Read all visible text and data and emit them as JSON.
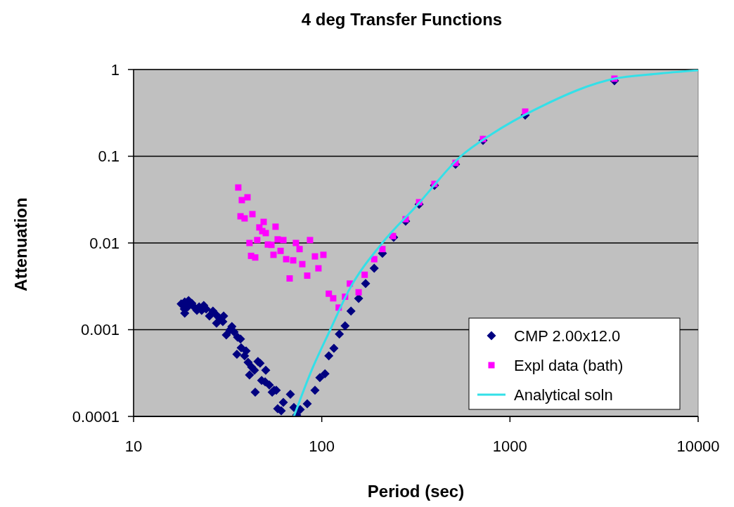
{
  "chart_data": {
    "type": "scatter",
    "title": "4 deg Transfer Functions",
    "xlabel": "Period (sec)",
    "ylabel": "Attenuation",
    "log": "xy",
    "xlim": [
      10,
      10000
    ],
    "ylim": [
      0.0001,
      1
    ],
    "xticks": [
      10,
      100,
      1000,
      10000
    ],
    "yticks": [
      0.0001,
      0.001,
      0.01,
      0.1,
      1
    ],
    "grid": "y",
    "legend": "bottom right",
    "series": [
      {
        "name": "CMP 2.00x12.0",
        "marker": "diamond",
        "color": "#000080",
        "x": [
          17.9,
          18.7,
          19.6,
          20.4,
          18.6,
          19.4,
          21.1,
          22.3,
          23.6,
          21.7,
          18.7,
          23.0,
          24.3,
          25.3,
          26.4,
          27.4,
          27.6,
          28.6,
          30.1,
          29.8,
          31.1,
          32.5,
          33.3,
          34.2,
          35.7,
          37.0,
          37.3,
          35.4,
          38.9,
          39.6,
          40.6,
          45.8,
          47.0,
          42.4,
          43.9,
          41.3,
          50.4,
          47.9,
          50.0,
          52.6,
          55.8,
          54.5,
          57.3,
          44.3,
          68.1,
          62.5,
          58.3,
          60.9,
          71.1,
          76.8,
          83.7,
          73.6,
          92.0,
          97.7,
          104,
          109,
          116,
          124,
          133,
          143,
          157,
          171,
          190,
          210,
          241,
          279,
          329,
          397,
          514,
          719,
          1205,
          3590
        ],
        "values": [
          0.00198,
          0.00209,
          0.00217,
          0.00201,
          0.00173,
          0.00183,
          0.0018,
          0.00183,
          0.0019,
          0.00167,
          0.00155,
          0.00167,
          0.00173,
          0.00144,
          0.00164,
          0.00149,
          0.00119,
          0.00136,
          0.00144,
          0.00124,
          0.00087,
          0.00099,
          0.00109,
          0.00094,
          0.00082,
          0.00078,
          0.00062,
          0.00052,
          0.0005,
          0.00057,
          0.00042,
          0.00043,
          0.00041,
          0.00037,
          0.00034,
          0.0003,
          0.00034,
          0.00026,
          0.00025,
          0.00023,
          0.0002,
          0.00019,
          0.0002,
          0.00019,
          0.00018,
          0.000145,
          0.000123,
          0.000116,
          0.000127,
          0.00012,
          0.00014,
          0.000104,
          0.0002,
          0.00028,
          0.00031,
          0.0005,
          0.00061,
          0.00089,
          0.00111,
          0.00164,
          0.00229,
          0.0034,
          0.0051,
          0.0076,
          0.0116,
          0.0178,
          0.0279,
          0.0461,
          0.0807,
          0.152,
          0.298,
          0.742
        ]
      },
      {
        "name": "Expl data (bath)",
        "marker": "square",
        "color": "#ff00ff",
        "x": [
          36.0,
          37.6,
          40.3,
          37.0,
          38.9,
          42.8,
          49.1,
          46.6,
          48.3,
          50.4,
          56.8,
          41.3,
          45.4,
          51.7,
          54.0,
          58.3,
          62.5,
          72.9,
          76.2,
          86.6,
          42.1,
          44.3,
          55.4,
          60.4,
          64.7,
          70.5,
          78.8,
          92.0,
          102,
          96.0,
          67.5,
          83.7,
          109,
          115,
          123,
          133,
          141,
          157,
          169,
          190,
          210,
          239,
          279,
          329,
          397,
          514,
          719,
          1205,
          3590
        ],
        "values": [
          0.0436,
          0.0312,
          0.0336,
          0.0203,
          0.0192,
          0.0215,
          0.0175,
          0.0151,
          0.0137,
          0.013,
          0.0154,
          0.01,
          0.0108,
          0.0096,
          0.0095,
          0.011,
          0.0108,
          0.01,
          0.0085,
          0.0108,
          0.0071,
          0.0068,
          0.0073,
          0.0081,
          0.0065,
          0.0063,
          0.0057,
          0.007,
          0.0073,
          0.0051,
          0.0039,
          0.0042,
          0.0026,
          0.0023,
          0.0018,
          0.0024,
          0.0034,
          0.0027,
          0.0043,
          0.0065,
          0.0085,
          0.012,
          0.0188,
          0.0295,
          0.0479,
          0.0838,
          0.158,
          0.327,
          0.785
        ]
      },
      {
        "name": "Analytical soln",
        "type": "line",
        "marker": "none",
        "color": "#33e0e8",
        "x": [
          71.1,
          88.3,
          111,
          140,
          208,
          320,
          548,
          800,
          1430,
          3590,
          5950,
          10000
        ],
        "values": [
          0.0001,
          0.00034,
          0.001,
          0.0029,
          0.0098,
          0.027,
          0.1,
          0.18,
          0.365,
          0.785,
          0.89,
          0.98
        ]
      }
    ]
  }
}
